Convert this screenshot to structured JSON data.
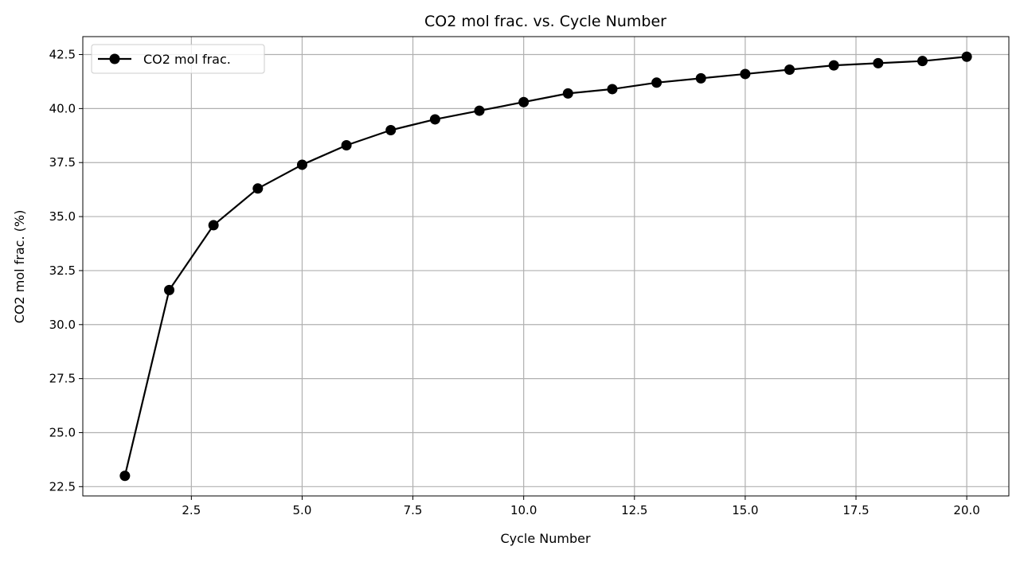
{
  "chart_data": {
    "type": "line",
    "title": "CO2 mol frac. vs. Cycle Number",
    "xlabel": "Cycle Number",
    "ylabel": "CO2 mol frac. (%)",
    "x": [
      1,
      2,
      3,
      4,
      5,
      6,
      7,
      8,
      9,
      10,
      11,
      12,
      13,
      14,
      15,
      16,
      17,
      18,
      19,
      20
    ],
    "series": [
      {
        "name": "CO2 mol frac.",
        "color": "#000000",
        "marker": "circle",
        "values": [
          23.0,
          31.6,
          34.6,
          36.3,
          37.4,
          38.3,
          39.0,
          39.5,
          39.9,
          40.3,
          40.7,
          40.9,
          41.2,
          41.4,
          41.6,
          41.8,
          42.0,
          42.1,
          42.2,
          42.4
        ]
      }
    ],
    "xlim": [
      0.05,
      20.95
    ],
    "ylim": [
      22.07,
      43.33
    ],
    "xticks": [
      "2.5",
      "5.0",
      "7.5",
      "10.0",
      "12.5",
      "15.0",
      "17.5",
      "20.0"
    ],
    "yticks": [
      "22.5",
      "25.0",
      "27.5",
      "30.0",
      "32.5",
      "35.0",
      "37.5",
      "40.0",
      "42.5"
    ],
    "grid": true,
    "grid_color": "#b0b0b0",
    "legend_position": "upper-left"
  }
}
